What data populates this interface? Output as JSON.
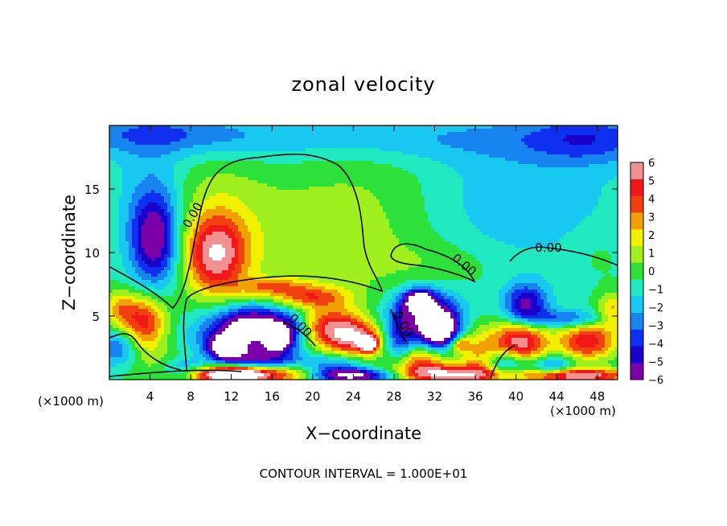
{
  "chart_data": {
    "type": "heatmap",
    "title": "zonal velocity",
    "xlabel": "X−coordinate",
    "ylabel": "Z−coordinate",
    "x_unit_left": "(×1000 m)",
    "x_unit_right": "(×1000 m)",
    "footer": "CONTOUR INTERVAL = 1.000E+01",
    "xlim": [
      0,
      50
    ],
    "ylim": [
      0,
      20
    ],
    "x_ticks": [
      4,
      8,
      12,
      16,
      20,
      24,
      28,
      32,
      36,
      40,
      44,
      48
    ],
    "y_ticks": [
      5,
      10,
      15
    ],
    "contour_label": "0.00",
    "colorbar": {
      "ticks": [
        "6",
        "5",
        "4",
        "3",
        "2",
        "1",
        "0",
        "−1",
        "−2",
        "−3",
        "−4",
        "−5",
        "−6"
      ],
      "min": -6,
      "max": 6
    },
    "field": {
      "background": -0.5,
      "features": [
        {
          "x": 4.5,
          "z": 11.0,
          "sx": 1.6,
          "sz": 2.5,
          "v": -5.0
        },
        {
          "x": 4.0,
          "z": 13.5,
          "sx": 2.5,
          "sz": 4.0,
          "v": -1.6
        },
        {
          "x": 10.5,
          "z": 9.8,
          "sx": 2.0,
          "sz": 2.0,
          "v": 5.0
        },
        {
          "x": 10.5,
          "z": 11.5,
          "sx": 3.0,
          "sz": 3.5,
          "v": 1.6
        },
        {
          "x": 18.0,
          "z": 11.0,
          "sx": 8.0,
          "sz": 4.5,
          "v": 1.2
        },
        {
          "x": 27.0,
          "z": 13.0,
          "sx": 5.0,
          "sz": 5.0,
          "v": 0.8
        },
        {
          "x": 40.0,
          "z": 14.0,
          "sx": 8.0,
          "sz": 4.0,
          "v": -1.5
        },
        {
          "x": 25.0,
          "z": 19.0,
          "sx": 30.0,
          "sz": 1.3,
          "v": -1.7
        },
        {
          "x": 5.0,
          "z": 19.5,
          "sx": 6.0,
          "sz": 1.0,
          "v": -1.5
        },
        {
          "x": 47.0,
          "z": 19.0,
          "sx": 4.0,
          "sz": 1.5,
          "v": -2.0
        },
        {
          "x": 33.0,
          "z": 9.0,
          "sx": 4.0,
          "sz": 1.3,
          "v": 0.8
        },
        {
          "x": 48.0,
          "z": 10.0,
          "sx": 2.0,
          "sz": 1.5,
          "v": 0.6
        },
        {
          "x": 3.5,
          "z": 4.5,
          "sx": 1.5,
          "sz": 1.5,
          "v": 5.0
        },
        {
          "x": 1.0,
          "z": 5.5,
          "sx": 1.2,
          "sz": 1.0,
          "v": 3.0
        },
        {
          "x": 0.8,
          "z": 2.5,
          "sx": 1.5,
          "sz": 1.0,
          "v": -2.8
        },
        {
          "x": 5.0,
          "z": 1.5,
          "sx": 2.0,
          "sz": 0.8,
          "v": 1.0
        },
        {
          "x": 12.5,
          "z": 3.5,
          "sx": 2.8,
          "sz": 1.4,
          "v": -5.5
        },
        {
          "x": 11.5,
          "z": 2.5,
          "sx": 1.0,
          "sz": 0.6,
          "v": -7.5
        },
        {
          "x": 14.5,
          "z": 4.5,
          "sx": 2.0,
          "sz": 0.9,
          "v": -4.0
        },
        {
          "x": 17.5,
          "z": 3.8,
          "sx": 1.5,
          "sz": 1.0,
          "v": -4.5
        },
        {
          "x": 15.5,
          "z": 1.6,
          "sx": 2.5,
          "sz": 0.6,
          "v": -3.5
        },
        {
          "x": 16.5,
          "z": 3.0,
          "sx": 0.8,
          "sz": 0.5,
          "v": -6.0
        },
        {
          "x": 14.5,
          "z": 0.4,
          "sx": 5.0,
          "sz": 0.5,
          "v": 5.5
        },
        {
          "x": 12.0,
          "z": 0.4,
          "sx": 2.0,
          "sz": 0.4,
          "v": 7.0
        },
        {
          "x": 22.0,
          "z": 4.0,
          "sx": 2.2,
          "sz": 1.1,
          "v": 5.2
        },
        {
          "x": 24.5,
          "z": 3.2,
          "sx": 1.8,
          "sz": 0.9,
          "v": 4.5
        },
        {
          "x": 25.5,
          "z": 2.8,
          "sx": 0.6,
          "sz": 0.4,
          "v": 7.5
        },
        {
          "x": 20.0,
          "z": 6.5,
          "sx": 2.5,
          "sz": 0.6,
          "v": 3.5
        },
        {
          "x": 16.0,
          "z": 7.3,
          "sx": 2.5,
          "sz": 0.5,
          "v": 2.8
        },
        {
          "x": 22.0,
          "z": 1.0,
          "sx": 2.0,
          "sz": 0.6,
          "v": -3.0
        },
        {
          "x": 24.0,
          "z": 0.3,
          "sx": 3.0,
          "sz": 0.4,
          "v": -7.0
        },
        {
          "x": 31.0,
          "z": 5.0,
          "sx": 2.5,
          "sz": 1.5,
          "v": -5.0
        },
        {
          "x": 32.5,
          "z": 4.0,
          "sx": 1.2,
          "sz": 1.0,
          "v": -7.5
        },
        {
          "x": 30.5,
          "z": 6.2,
          "sx": 1.0,
          "sz": 0.6,
          "v": -6.5
        },
        {
          "x": 28.5,
          "z": 3.0,
          "sx": 1.0,
          "sz": 1.5,
          "v": -3.0
        },
        {
          "x": 30.5,
          "z": 1.5,
          "sx": 2.0,
          "sz": 0.8,
          "v": 4.0
        },
        {
          "x": 33.5,
          "z": 0.4,
          "sx": 4.0,
          "sz": 0.5,
          "v": 6.5
        },
        {
          "x": 36.5,
          "z": 2.0,
          "sx": 1.5,
          "sz": 1.5,
          "v": 3.0
        },
        {
          "x": 34.5,
          "z": 2.8,
          "sx": 0.7,
          "sz": 0.4,
          "v": 3.5
        },
        {
          "x": 41.0,
          "z": 5.8,
          "sx": 1.5,
          "sz": 1.2,
          "v": -5.0
        },
        {
          "x": 40.5,
          "z": 3.0,
          "sx": 1.8,
          "sz": 1.2,
          "v": 6.5
        },
        {
          "x": 39.0,
          "z": 1.2,
          "sx": 1.5,
          "sz": 0.8,
          "v": -3.5
        },
        {
          "x": 47.0,
          "z": 3.0,
          "sx": 2.0,
          "sz": 1.0,
          "v": 5.5
        },
        {
          "x": 45.0,
          "z": 4.8,
          "sx": 2.5,
          "sz": 0.5,
          "v": -3.0
        },
        {
          "x": 46.0,
          "z": 0.3,
          "sx": 3.5,
          "sz": 0.4,
          "v": 7.0
        },
        {
          "x": 43.5,
          "z": 1.0,
          "sx": 1.5,
          "sz": 0.6,
          "v": -3.0
        },
        {
          "x": 49.5,
          "z": 5.5,
          "sx": 1.0,
          "sz": 1.0,
          "v": 3.0
        },
        {
          "x": 7.0,
          "z": 0.8,
          "sx": 1.5,
          "sz": 0.6,
          "v": -2.5
        }
      ]
    }
  }
}
